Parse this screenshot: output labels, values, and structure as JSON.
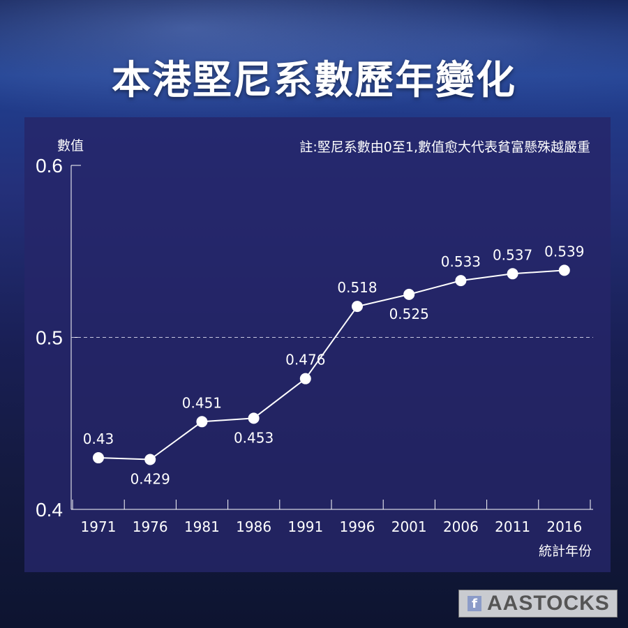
{
  "title": "本港堅尼系數歷年變化",
  "logo": {
    "text": "AASTOCKS",
    "icon": "facebook-icon"
  },
  "chart_data": {
    "type": "line",
    "title": "本港堅尼系數歷年變化",
    "ylabel": "數值",
    "xlabel": "統計年份",
    "note": "註:堅尼系數由0至1,數值愈大代表貧富懸殊越嚴重",
    "ylim": [
      0.4,
      0.6
    ],
    "yticks": [
      "0.4",
      "0.5",
      "0.6"
    ],
    "reference_line": 0.5,
    "categories": [
      "1971",
      "1976",
      "1981",
      "1986",
      "1991",
      "1996",
      "2001",
      "2006",
      "2011",
      "2016"
    ],
    "values": [
      0.43,
      0.429,
      0.451,
      0.453,
      0.476,
      0.518,
      0.525,
      0.533,
      0.537,
      0.539
    ],
    "data_labels": [
      "0.43",
      "0.429",
      "0.451",
      "0.453",
      "0.476",
      "0.518",
      "0.525",
      "0.533",
      "0.537",
      "0.539"
    ],
    "colors": {
      "line": "#ffffff",
      "marker": "#ffffff",
      "panel": "#26266a"
    }
  }
}
